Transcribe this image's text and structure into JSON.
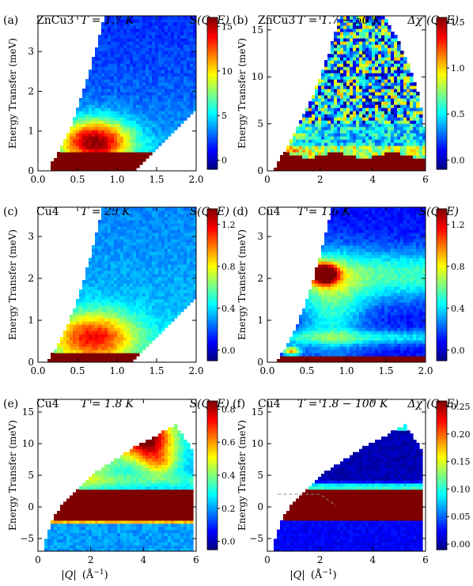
{
  "figure": {
    "ylabel": "Energy Transfer (meV)",
    "xlabel_q": "|Q|",
    "xlabel_unit": "(Å",
    "xlabel_exp": "−1",
    "xlabel_close": ")"
  },
  "colormap": [
    "#00007f",
    "#0000ff",
    "#007fff",
    "#00ffff",
    "#7fff7f",
    "#ffff00",
    "#ff7f00",
    "#ff0000",
    "#7f0000"
  ],
  "chart_data": [
    {
      "id": "a",
      "type": "heatmap",
      "letter": "(a)",
      "material": "ZnCu3",
      "temperature": "T = 1.7 K",
      "quantity": "S(Q, E)",
      "xlim": [
        0,
        2.0
      ],
      "ylim": [
        0,
        3.9
      ],
      "xticks": [
        0.0,
        0.5,
        1.0,
        1.5,
        2.0
      ],
      "xtick_labels": [
        "0.0",
        "0.5",
        "1.0",
        "1.5",
        "2.0"
      ],
      "yticks": [
        0,
        1,
        2,
        3
      ],
      "ytick_labels": [
        "0",
        "1",
        "2",
        "3"
      ],
      "clim": [
        -1,
        16
      ],
      "cticks": [
        0,
        5,
        10,
        15
      ],
      "ctick_labels": [
        "0",
        "5",
        "10",
        "15"
      ],
      "show_xticklabels": true,
      "features": "elastic line below 0.5 meV; broad continuum centred near Q ≈ 0.7 Å⁻¹, E ≈ 0.7 meV"
    },
    {
      "id": "b",
      "type": "heatmap",
      "letter": "(b)",
      "material": "ZnCu3",
      "temperature": "T = 1.7 − 50 K",
      "quantity": "Δχ″(Q, E)",
      "xlim": [
        0,
        6
      ],
      "ylim": [
        0,
        16.5
      ],
      "xticks": [
        0,
        2,
        4,
        6
      ],
      "xtick_labels": [
        "0",
        "2",
        "4",
        "6"
      ],
      "yticks": [
        0,
        5,
        10,
        15
      ],
      "ytick_labels": [
        "0",
        "5",
        "10",
        "15"
      ],
      "clim": [
        -0.1,
        1.55
      ],
      "cticks": [
        0.0,
        0.5,
        1.0,
        1.5
      ],
      "ctick_labels": [
        "0.0",
        "0.5",
        "1.0",
        "1.5"
      ],
      "show_xticklabels": true,
      "features": "saturated band below 2 meV; noisy response above"
    },
    {
      "id": "c",
      "type": "heatmap",
      "letter": "(c)",
      "material": "Cu4",
      "temperature": "T = 25 K",
      "quantity": "S(Q, E)",
      "xlim": [
        0,
        2.0
      ],
      "ylim": [
        0,
        3.7
      ],
      "xticks": [
        0.0,
        0.5,
        1.0,
        1.5,
        2.0
      ],
      "xtick_labels": [
        "0.0",
        "0.5",
        "1.0",
        "1.5",
        "2.0"
      ],
      "yticks": [
        0,
        1,
        2,
        3
      ],
      "ytick_labels": [
        "0",
        "1",
        "2",
        "3"
      ],
      "clim": [
        -0.1,
        1.35
      ],
      "cticks": [
        0.0,
        0.4,
        0.8,
        1.2
      ],
      "ctick_labels": [
        "0.0",
        "0.4",
        "0.8",
        "1.2"
      ],
      "show_xticklabels": true,
      "features": "elastic line; continuum centred near Q ≈ 0.7 Å⁻¹ below 1 meV"
    },
    {
      "id": "d",
      "type": "heatmap",
      "letter": "(d)",
      "material": "Cu4",
      "temperature": "T = 1.6 K",
      "quantity": "S(Q, E)",
      "xlim": [
        0,
        2.0
      ],
      "ylim": [
        0,
        3.7
      ],
      "xticks": [
        0.0,
        0.5,
        1.0,
        1.5,
        2.0
      ],
      "xtick_labels": [
        "0.0",
        "0.5",
        "1.0",
        "1.5",
        "2.0"
      ],
      "yticks": [
        0,
        1,
        2,
        3
      ],
      "ytick_labels": [
        "0",
        "1",
        "2",
        "3"
      ],
      "clim": [
        -0.1,
        1.35
      ],
      "cticks": [
        0.0,
        0.4,
        0.8,
        1.2
      ],
      "ctick_labels": [
        "0.0",
        "0.4",
        "0.8",
        "1.2"
      ],
      "show_xticklabels": true,
      "features": "dispersionless modes near 0.6 meV and 2.1 meV; strong spot at Q ≈ 0.7 Å⁻¹, E ≈ 2.1 meV"
    },
    {
      "id": "e",
      "type": "heatmap",
      "letter": "(e)",
      "material": "Cu4",
      "temperature": "T = 1.8 K",
      "quantity": "S(Q, E)",
      "xlim": [
        0,
        6
      ],
      "ylim": [
        -7,
        17
      ],
      "xticks": [
        0,
        2,
        4,
        6
      ],
      "xtick_labels": [
        "0",
        "2",
        "4",
        "6"
      ],
      "yticks": [
        -5,
        0,
        5,
        10,
        15
      ],
      "ytick_labels": [
        "−5",
        "0",
        "5",
        "10",
        "15"
      ],
      "clim": [
        -0.05,
        0.85
      ],
      "cticks": [
        0.0,
        0.2,
        0.4,
        0.6,
        0.8
      ],
      "ctick_labels": [
        "0.0",
        "0.2",
        "0.4",
        "0.6",
        "0.8"
      ],
      "show_xticklabels": true,
      "features": "elastic band −2 to 3 meV; strong intensity near Q ≈ 4 Å⁻¹, E ≈ 10–12 meV"
    },
    {
      "id": "f",
      "type": "heatmap",
      "letter": "(f)",
      "material": "Cu4",
      "temperature": "T = 1.8 − 100 K",
      "quantity": "Δχ″(Q, E)",
      "xlim": [
        0,
        6
      ],
      "ylim": [
        -7,
        17
      ],
      "xticks": [
        0,
        2,
        4,
        6
      ],
      "xtick_labels": [
        "0",
        "2",
        "4",
        "6"
      ],
      "yticks": [
        -5,
        0,
        5,
        10,
        15
      ],
      "ytick_labels": [
        "−5",
        "0",
        "5",
        "10",
        "15"
      ],
      "clim": [
        -0.01,
        0.26
      ],
      "cticks": [
        0.0,
        0.05,
        0.1,
        0.15,
        0.2,
        0.25
      ],
      "ctick_labels": [
        "0.00",
        "0.05",
        "0.10",
        "0.15",
        "0.20",
        "0.25"
      ],
      "show_xticklabels": true,
      "features": "elastic band −2 to 3 meV; weak signal near Q ≈ 1 Å⁻¹, E ≈ 10 meV; dashed guide line"
    }
  ]
}
